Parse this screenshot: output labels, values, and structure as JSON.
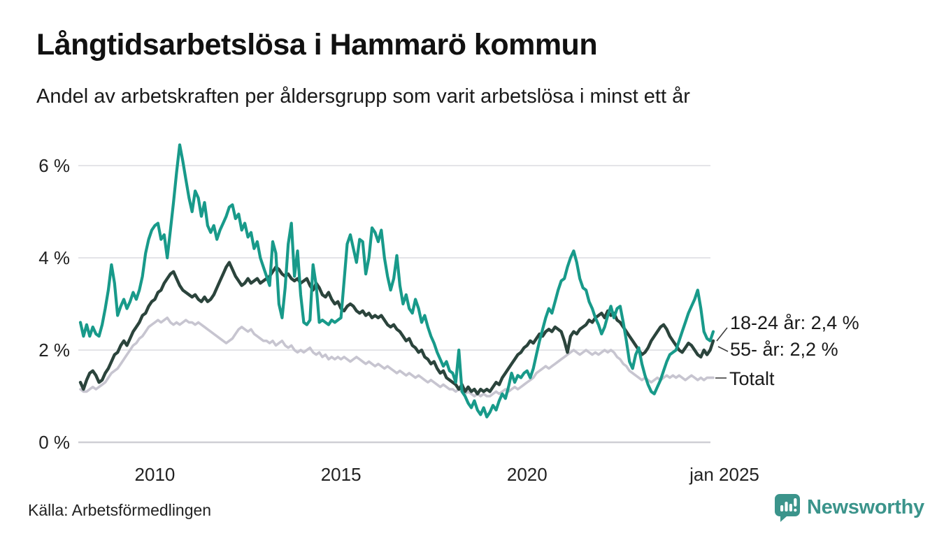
{
  "header": {
    "title": "Långtidsarbetslösa i Hammarö kommun",
    "subtitle": "Andel av arbetskraften per åldersgrupp som varit arbetslösa i minst ett år"
  },
  "chart_data": {
    "type": "line",
    "title": "Långtidsarbetslösa i Hammarö kommun",
    "x_unit": "month",
    "x_start": "jan 2008",
    "x_end": "jan 2025",
    "ylim": [
      0,
      6.8
    ],
    "grid": "horizontal",
    "legend_position": "right-end-labels",
    "y_ticks": [
      {
        "label": "0 %",
        "value": 0
      },
      {
        "label": "2 %",
        "value": 2
      },
      {
        "label": "4 %",
        "value": 4
      },
      {
        "label": "6 %",
        "value": 6
      }
    ],
    "x_ticks": [
      {
        "label": "2010",
        "month_index": 24
      },
      {
        "label": "2015",
        "month_index": 84
      },
      {
        "label": "2020",
        "month_index": 144
      },
      {
        "label": "jan 2025",
        "month_index": 204
      }
    ],
    "series": [
      {
        "name": "18-24 år",
        "color": "#189a8a",
        "end_label": "18-24 år: 2,4 %",
        "latest_value": "2,4 %",
        "values": [
          2.6,
          2.3,
          2.55,
          2.3,
          2.5,
          2.35,
          2.3,
          2.55,
          2.9,
          3.3,
          3.85,
          3.45,
          2.75,
          2.95,
          3.1,
          2.9,
          3.05,
          3.25,
          3.1,
          3.3,
          3.6,
          4.1,
          4.4,
          4.6,
          4.7,
          4.75,
          4.4,
          4.5,
          4.0,
          4.6,
          5.2,
          5.85,
          6.45,
          6.1,
          5.7,
          5.3,
          5.0,
          5.45,
          5.3,
          4.9,
          5.2,
          4.7,
          4.55,
          4.7,
          4.4,
          4.6,
          4.75,
          4.9,
          5.1,
          5.15,
          4.85,
          4.95,
          4.6,
          4.75,
          4.45,
          4.55,
          4.2,
          4.35,
          4.0,
          3.8,
          3.6,
          3.4,
          4.35,
          4.1,
          3.0,
          2.7,
          3.35,
          4.3,
          4.75,
          3.6,
          4.15,
          3.2,
          2.6,
          2.55,
          2.65,
          3.85,
          3.4,
          2.6,
          2.65,
          2.6,
          2.55,
          2.65,
          2.6,
          2.65,
          2.7,
          3.5,
          4.3,
          4.5,
          4.2,
          3.9,
          4.4,
          4.35,
          3.65,
          4.0,
          4.65,
          4.55,
          4.35,
          4.6,
          4.0,
          3.6,
          3.3,
          3.55,
          4.05,
          3.4,
          3.0,
          3.2,
          2.9,
          2.8,
          3.1,
          2.9,
          2.6,
          2.75,
          2.5,
          2.3,
          2.15,
          1.95,
          1.8,
          1.65,
          1.75,
          1.55,
          1.5,
          1.3,
          2.0,
          1.1,
          1.0,
          0.85,
          0.75,
          0.9,
          0.7,
          0.6,
          0.75,
          0.55,
          0.65,
          0.8,
          0.7,
          0.9,
          1.05,
          0.95,
          1.2,
          1.5,
          1.3,
          1.45,
          1.4,
          1.5,
          1.55,
          1.4,
          1.6,
          1.9,
          2.2,
          2.45,
          2.7,
          2.9,
          2.8,
          3.05,
          3.3,
          3.5,
          3.55,
          3.8,
          4.0,
          4.15,
          3.9,
          3.55,
          3.35,
          3.3,
          3.05,
          2.9,
          2.7,
          2.55,
          2.35,
          2.5,
          2.75,
          2.95,
          2.7,
          2.9,
          2.95,
          2.6,
          2.2,
          1.75,
          1.6,
          1.9,
          2.05,
          1.7,
          1.45,
          1.25,
          1.1,
          1.05,
          1.2,
          1.35,
          1.55,
          1.75,
          1.9,
          1.95,
          2.0,
          2.2,
          2.4,
          2.6,
          2.8,
          2.95,
          3.1,
          3.3,
          2.9,
          2.4,
          2.25,
          2.2,
          2.4
        ]
      },
      {
        "name": "55- år",
        "color": "#2b443c",
        "end_label": "55- år: 2,2 %",
        "latest_value": "2,2 %",
        "values": [
          1.3,
          1.15,
          1.35,
          1.5,
          1.55,
          1.45,
          1.3,
          1.35,
          1.5,
          1.6,
          1.75,
          1.9,
          1.95,
          2.1,
          2.2,
          2.1,
          2.25,
          2.4,
          2.5,
          2.6,
          2.75,
          2.8,
          2.95,
          3.05,
          3.1,
          3.25,
          3.3,
          3.45,
          3.55,
          3.65,
          3.7,
          3.55,
          3.4,
          3.3,
          3.25,
          3.2,
          3.15,
          3.2,
          3.1,
          3.05,
          3.15,
          3.05,
          3.1,
          3.2,
          3.35,
          3.5,
          3.65,
          3.8,
          3.9,
          3.75,
          3.6,
          3.5,
          3.4,
          3.45,
          3.55,
          3.45,
          3.5,
          3.55,
          3.45,
          3.5,
          3.55,
          3.6,
          3.7,
          3.8,
          3.75,
          3.65,
          3.6,
          3.65,
          3.55,
          3.5,
          3.55,
          3.45,
          3.5,
          3.55,
          3.4,
          3.3,
          3.45,
          3.35,
          3.2,
          3.15,
          3.25,
          3.1,
          3.0,
          3.05,
          2.9,
          2.85,
          2.95,
          3.0,
          2.95,
          2.85,
          2.8,
          2.85,
          2.75,
          2.8,
          2.7,
          2.75,
          2.7,
          2.75,
          2.65,
          2.55,
          2.5,
          2.55,
          2.45,
          2.4,
          2.3,
          2.2,
          2.25,
          2.1,
          2.05,
          1.95,
          2.0,
          1.85,
          1.8,
          1.7,
          1.75,
          1.6,
          1.5,
          1.55,
          1.4,
          1.35,
          1.3,
          1.25,
          1.15,
          1.25,
          1.1,
          1.2,
          1.1,
          1.15,
          1.05,
          1.15,
          1.1,
          1.15,
          1.1,
          1.2,
          1.3,
          1.25,
          1.4,
          1.5,
          1.6,
          1.7,
          1.8,
          1.9,
          1.95,
          2.05,
          2.1,
          2.2,
          2.15,
          2.25,
          2.35,
          2.3,
          2.4,
          2.45,
          2.4,
          2.5,
          2.45,
          2.4,
          2.2,
          1.95,
          2.3,
          2.4,
          2.35,
          2.45,
          2.5,
          2.55,
          2.65,
          2.6,
          2.7,
          2.75,
          2.8,
          2.7,
          2.85,
          2.75,
          2.8,
          2.65,
          2.6,
          2.5,
          2.4,
          2.3,
          2.2,
          2.1,
          2.0,
          1.9,
          1.95,
          2.05,
          2.2,
          2.3,
          2.4,
          2.5,
          2.55,
          2.45,
          2.3,
          2.2,
          2.1,
          2.0,
          1.95,
          2.05,
          2.15,
          2.1,
          2.0,
          1.9,
          1.85,
          2.0,
          1.9,
          2.0,
          2.2
        ]
      },
      {
        "name": "Totalt",
        "color": "#c7c5d0",
        "end_label": "Totalt",
        "latest_value": "",
        "values": [
          1.15,
          1.1,
          1.1,
          1.15,
          1.2,
          1.15,
          1.2,
          1.25,
          1.3,
          1.4,
          1.5,
          1.55,
          1.6,
          1.7,
          1.8,
          1.9,
          2.0,
          2.1,
          2.15,
          2.25,
          2.3,
          2.4,
          2.5,
          2.55,
          2.6,
          2.65,
          2.6,
          2.65,
          2.7,
          2.6,
          2.55,
          2.6,
          2.55,
          2.6,
          2.65,
          2.6,
          2.6,
          2.55,
          2.6,
          2.55,
          2.5,
          2.45,
          2.4,
          2.35,
          2.3,
          2.25,
          2.2,
          2.15,
          2.2,
          2.25,
          2.35,
          2.45,
          2.5,
          2.45,
          2.4,
          2.45,
          2.35,
          2.3,
          2.25,
          2.2,
          2.2,
          2.15,
          2.2,
          2.1,
          2.15,
          2.2,
          2.1,
          2.05,
          2.1,
          2.0,
          1.95,
          2.0,
          1.95,
          2.0,
          2.05,
          1.95,
          1.9,
          1.95,
          1.85,
          1.9,
          1.8,
          1.85,
          1.8,
          1.85,
          1.8,
          1.85,
          1.8,
          1.75,
          1.8,
          1.85,
          1.8,
          1.75,
          1.7,
          1.75,
          1.7,
          1.65,
          1.7,
          1.65,
          1.6,
          1.65,
          1.6,
          1.55,
          1.5,
          1.55,
          1.5,
          1.45,
          1.5,
          1.45,
          1.4,
          1.45,
          1.4,
          1.35,
          1.3,
          1.35,
          1.3,
          1.25,
          1.2,
          1.25,
          1.2,
          1.15,
          1.15,
          1.1,
          1.15,
          1.1,
          1.05,
          1.1,
          1.05,
          1.0,
          1.05,
          1.0,
          1.05,
          1.0,
          1.0,
          1.05,
          1.1,
          1.05,
          1.1,
          1.15,
          1.1,
          1.15,
          1.2,
          1.15,
          1.2,
          1.25,
          1.3,
          1.35,
          1.4,
          1.5,
          1.55,
          1.6,
          1.65,
          1.6,
          1.65,
          1.7,
          1.75,
          1.8,
          1.85,
          1.9,
          1.95,
          2.0,
          1.95,
          1.9,
          1.95,
          2.0,
          1.95,
          1.9,
          1.95,
          1.9,
          1.95,
          2.0,
          1.95,
          2.0,
          1.95,
          1.85,
          1.8,
          1.7,
          1.65,
          1.55,
          1.5,
          1.45,
          1.4,
          1.35,
          1.4,
          1.35,
          1.3,
          1.35,
          1.4,
          1.35,
          1.4,
          1.45,
          1.4,
          1.45,
          1.4,
          1.45,
          1.4,
          1.35,
          1.4,
          1.45,
          1.4,
          1.35,
          1.4,
          1.35,
          1.4,
          1.4,
          1.4
        ]
      }
    ],
    "colors": {
      "grid": "#e4e4e8",
      "zero_line": "#cfcfd4",
      "tick_text": "#222222",
      "connector": "#3f3f3f"
    }
  },
  "footer": {
    "source": "Källa: Arbetsförmedlingen",
    "brand": "Newsworthy",
    "brand_color": "#3b948b"
  }
}
